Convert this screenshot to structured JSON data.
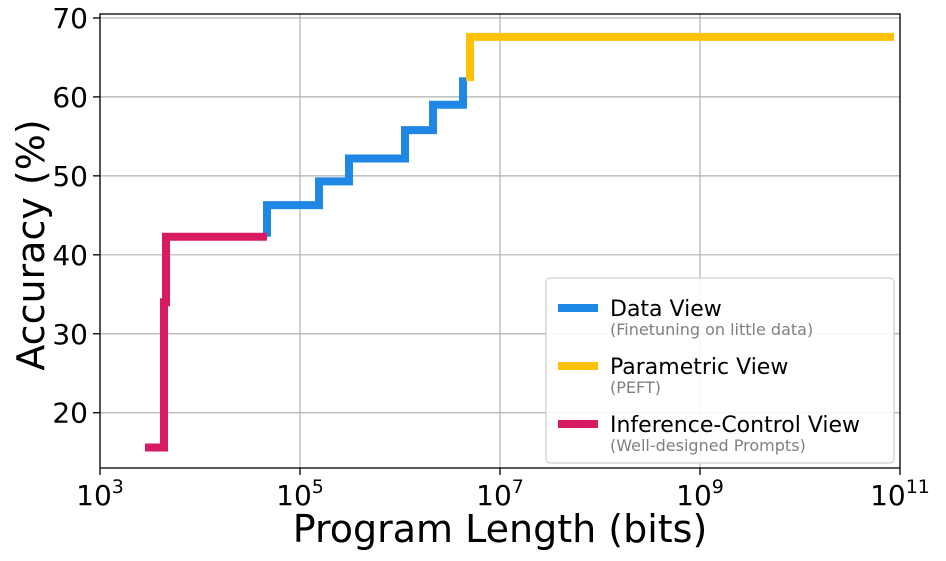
{
  "chart_data": {
    "type": "line",
    "xscale": "log",
    "xlabel": "Program Length (bits)",
    "ylabel": "Accuracy (%)",
    "xlim_log10": [
      3,
      11
    ],
    "ylim": [
      13,
      70.5
    ],
    "grid": true,
    "x_ticks": [
      {
        "base": "10",
        "exp": "3",
        "log10": 3
      },
      {
        "base": "10",
        "exp": "5",
        "log10": 5
      },
      {
        "base": "10",
        "exp": "7",
        "log10": 7
      },
      {
        "base": "10",
        "exp": "9",
        "log10": 9
      },
      {
        "base": "10",
        "exp": "11",
        "log10": 11
      }
    ],
    "y_ticks": [
      {
        "label": "20",
        "value": 20
      },
      {
        "label": "30",
        "value": 30
      },
      {
        "label": "40",
        "value": 40
      },
      {
        "label": "50",
        "value": 50
      },
      {
        "label": "60",
        "value": 60
      },
      {
        "label": "70",
        "value": 70
      }
    ],
    "legend_position": "lower-right",
    "series": [
      {
        "name": "Data View",
        "subtitle": "(Finetuning on little data)",
        "color": "#1f88e5",
        "points": [
          {
            "log10x": 4.67,
            "y": 42.3
          },
          {
            "log10x": 4.67,
            "y": 46.3
          },
          {
            "log10x": 5.19,
            "y": 46.3
          },
          {
            "log10x": 5.19,
            "y": 49.3
          },
          {
            "log10x": 5.49,
            "y": 49.3
          },
          {
            "log10x": 5.49,
            "y": 52.2
          },
          {
            "log10x": 6.05,
            "y": 52.2
          },
          {
            "log10x": 6.05,
            "y": 55.8
          },
          {
            "log10x": 6.33,
            "y": 55.8
          },
          {
            "log10x": 6.33,
            "y": 59.0
          },
          {
            "log10x": 6.63,
            "y": 59.0
          },
          {
            "log10x": 6.63,
            "y": 62.5
          }
        ]
      },
      {
        "name": "Parametric View",
        "subtitle": "(PEFT)",
        "color": "#ffc107",
        "points": [
          {
            "log10x": 6.7,
            "y": 62.0
          },
          {
            "log10x": 6.7,
            "y": 67.6
          },
          {
            "log10x": 10.94,
            "y": 67.6
          }
        ]
      },
      {
        "name": "Inference-Control View",
        "subtitle": "(Well-designed Prompts)",
        "color": "#d81b60",
        "points": [
          {
            "log10x": 3.45,
            "y": 15.6
          },
          {
            "log10x": 3.64,
            "y": 15.6
          },
          {
            "log10x": 3.64,
            "y": 34.0
          },
          {
            "log10x": 3.66,
            "y": 34.0
          },
          {
            "log10x": 3.66,
            "y": 42.3
          },
          {
            "log10x": 4.67,
            "y": 42.3
          }
        ]
      }
    ]
  }
}
